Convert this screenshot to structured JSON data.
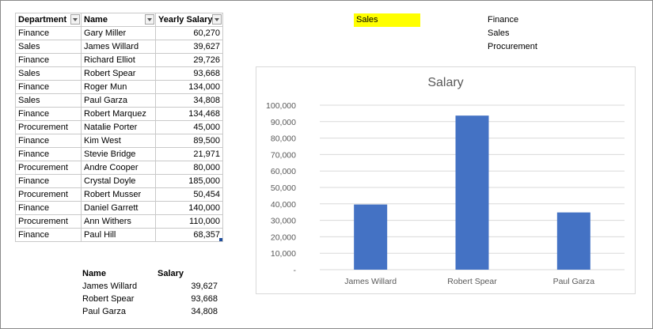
{
  "table": {
    "headers": [
      "Department",
      "Name",
      "Yearly Salary"
    ],
    "rows": [
      [
        "Finance",
        "Gary Miller",
        "60,270"
      ],
      [
        "Sales",
        "James Willard",
        "39,627"
      ],
      [
        "Finance",
        "Richard Elliot",
        "29,726"
      ],
      [
        "Sales",
        "Robert Spear",
        "93,668"
      ],
      [
        "Finance",
        "Roger Mun",
        "134,000"
      ],
      [
        "Sales",
        "Paul Garza",
        "34,808"
      ],
      [
        "Finance",
        "Robert Marquez",
        "134,468"
      ],
      [
        "Procurement",
        "Natalie Porter",
        "45,000"
      ],
      [
        "Finance",
        "Kim West",
        "89,500"
      ],
      [
        "Finance",
        "Stevie Bridge",
        "21,971"
      ],
      [
        "Procurement",
        "Andre Cooper",
        "80,000"
      ],
      [
        "Finance",
        "Crystal Doyle",
        "185,000"
      ],
      [
        "Procurement",
        "Robert Musser",
        "50,454"
      ],
      [
        "Finance",
        "Daniel Garrett",
        "140,000"
      ],
      [
        "Procurement",
        "Ann Withers",
        "110,000"
      ],
      [
        "Finance",
        "Paul Hill",
        "68,357"
      ]
    ]
  },
  "selected_department": "Sales",
  "department_list": [
    "Finance",
    "Sales",
    "Procurement"
  ],
  "summary": {
    "header_name": "Name",
    "header_salary": "Salary",
    "rows": [
      [
        "James Willard",
        "39,627"
      ],
      [
        "Robert Spear",
        "93,668"
      ],
      [
        "Paul Garza",
        "34,808"
      ]
    ]
  },
  "chart_data": {
    "type": "bar",
    "title": "Salary",
    "categories": [
      "James Willard",
      "Robert Spear",
      "Paul Garza"
    ],
    "values": [
      39627,
      93668,
      34808
    ],
    "ylim": [
      0,
      100000
    ],
    "y_ticks": [
      "-",
      "10,000",
      "20,000",
      "30,000",
      "40,000",
      "50,000",
      "60,000",
      "70,000",
      "80,000",
      "90,000",
      "100,000"
    ],
    "bar_color": "#4472c4",
    "grid": true
  }
}
